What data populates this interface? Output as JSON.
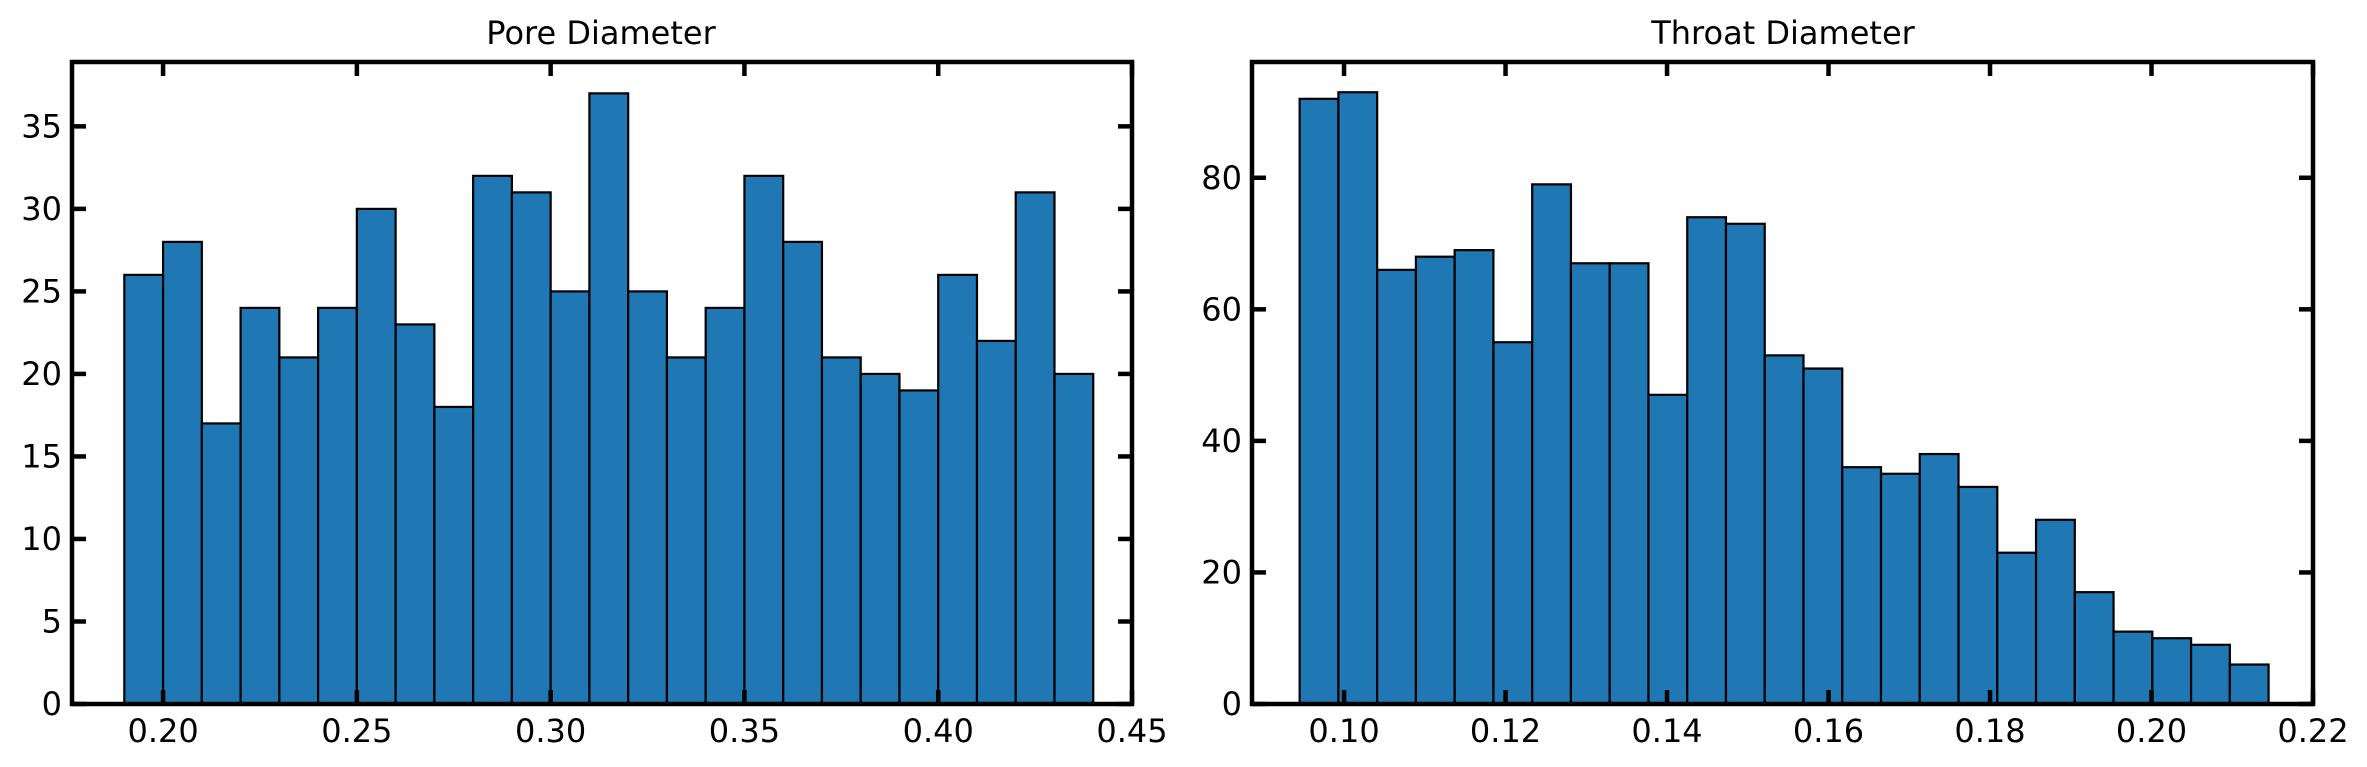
{
  "chart_data": [
    {
      "type": "bar",
      "title": "Pore Diameter",
      "xlabel": "",
      "ylabel": "",
      "bin_edges": [
        0.19,
        0.2,
        0.21,
        0.22,
        0.23,
        0.24,
        0.25,
        0.26,
        0.27,
        0.28,
        0.29,
        0.3,
        0.31,
        0.32,
        0.33,
        0.34,
        0.35,
        0.36,
        0.37,
        0.38,
        0.39,
        0.4,
        0.41,
        0.42,
        0.43,
        0.44
      ],
      "values": [
        26,
        28,
        17,
        24,
        21,
        24,
        30,
        23,
        18,
        32,
        31,
        25,
        37,
        25,
        21,
        24,
        32,
        28,
        21,
        20,
        19,
        26,
        22,
        31,
        20
      ],
      "xlim": [
        0.1765,
        0.45
      ],
      "ylim": [
        0,
        38.9
      ],
      "xticks": [
        0.2,
        0.25,
        0.3,
        0.35,
        0.4,
        0.45
      ],
      "xtick_labels": [
        "0.20",
        "0.25",
        "0.30",
        "0.35",
        "0.40",
        "0.45"
      ],
      "yticks": [
        0,
        5,
        10,
        15,
        20,
        25,
        30,
        35
      ],
      "ytick_labels": [
        "0",
        "5",
        "10",
        "15",
        "20",
        "25",
        "30",
        "35"
      ],
      "grid": false,
      "bar_color": "#1f77b4",
      "edge_color": "#000000"
    },
    {
      "type": "bar",
      "title": "Throat Diameter",
      "xlabel": "",
      "ylabel": "",
      "bin_edges": [
        0.0945,
        0.0993,
        0.1041,
        0.1089,
        0.1137,
        0.1185,
        0.1233,
        0.1281,
        0.1329,
        0.1377,
        0.1425,
        0.1473,
        0.1521,
        0.1569,
        0.1617,
        0.1665,
        0.1713,
        0.1761,
        0.1809,
        0.1857,
        0.1905,
        0.1953,
        0.2001,
        0.2049,
        0.2097,
        0.2145
      ],
      "values": [
        92,
        93,
        66,
        68,
        69,
        55,
        79,
        67,
        67,
        47,
        74,
        73,
        53,
        51,
        36,
        35,
        38,
        33,
        23,
        28,
        17,
        11,
        10,
        9,
        6
      ],
      "xlim": [
        0.0886,
        0.22
      ],
      "ylim": [
        0,
        97.6
      ],
      "xticks": [
        0.1,
        0.12,
        0.14,
        0.16,
        0.18,
        0.2,
        0.22
      ],
      "xtick_labels": [
        "0.10",
        "0.12",
        "0.14",
        "0.16",
        "0.18",
        "0.20",
        "0.22"
      ],
      "yticks": [
        0,
        20,
        40,
        60,
        80
      ],
      "ytick_labels": [
        "0",
        "20",
        "40",
        "60",
        "80"
      ],
      "grid": false,
      "bar_color": "#1f77b4",
      "edge_color": "#000000"
    }
  ]
}
